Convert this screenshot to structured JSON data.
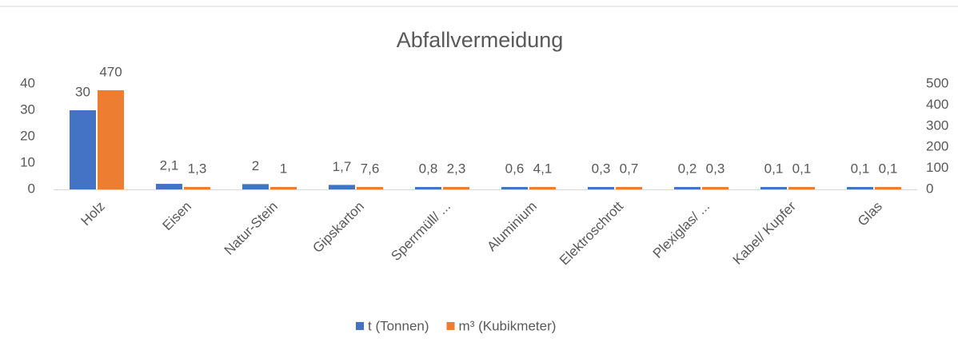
{
  "chart_data": {
    "type": "bar",
    "title": "Abfallvermeidung",
    "categories": [
      "Holz",
      "Eisen",
      "Natur-Stein",
      "Gipskarton",
      "Sperrmüll/ ...",
      "Aluminium",
      "Elektroschrott",
      "Plexiglas/ ...",
      "Kabel/ Kupfer",
      "Glas"
    ],
    "series": [
      {
        "name": "t (Tonnen)",
        "color": "#4472c4",
        "values": [
          30,
          2.1,
          2,
          1.7,
          0.8,
          0.6,
          0.3,
          0.2,
          0.1,
          0.1
        ],
        "value_labels": [
          "30",
          "2,1",
          "2",
          "1,7",
          "0,8",
          "0,6",
          "0,3",
          "0,2",
          "0,1",
          "0,1"
        ]
      },
      {
        "name": "m³ (Kubikmeter)",
        "color": "#ed7d31",
        "axis": "y2",
        "values": [
          470,
          1.3,
          1,
          7.6,
          2.3,
          4.1,
          0.7,
          0.3,
          0.1,
          0.1
        ],
        "value_labels": [
          "470",
          "1,3",
          "1",
          "7,6",
          "2,3",
          "4,1",
          "0,7",
          "0,3",
          "0,1",
          "0,1"
        ]
      }
    ],
    "ylim": [
      0,
      40
    ],
    "yticks": [
      0,
      10,
      20,
      30,
      40
    ],
    "y2lim": [
      0,
      500
    ],
    "y2ticks": [
      0,
      100,
      200,
      300,
      400,
      500
    ],
    "legend": "bottom"
  }
}
